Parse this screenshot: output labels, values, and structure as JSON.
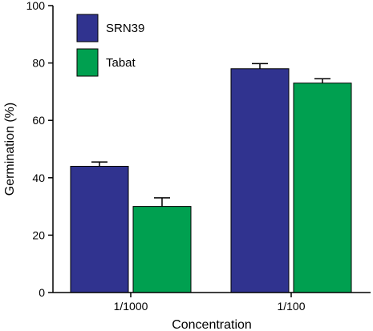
{
  "chart_data": {
    "type": "bar",
    "categories": [
      "1/1000",
      "1/100"
    ],
    "series": [
      {
        "name": "SRN39",
        "values": [
          44,
          78
        ],
        "errors": [
          1.5,
          1.8
        ],
        "color": "#30338f"
      },
      {
        "name": "Tabat",
        "values": [
          30,
          73
        ],
        "errors": [
          3.0,
          1.5
        ],
        "color": "#00a050"
      }
    ],
    "xlabel": "Concentration",
    "ylabel": "Germination (%)",
    "ylim": [
      0,
      100
    ],
    "yticks": [
      0,
      20,
      40,
      60,
      80,
      100
    ],
    "grid": false,
    "legend_position": "top-left"
  }
}
